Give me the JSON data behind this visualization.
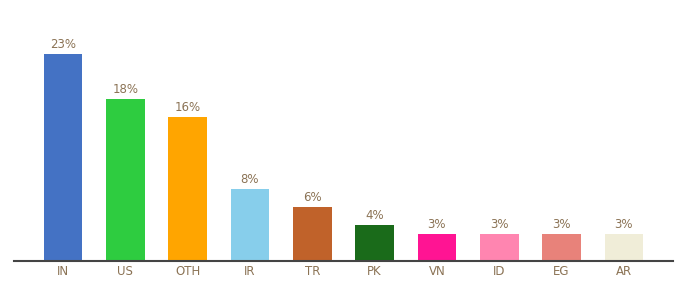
{
  "categories": [
    "IN",
    "US",
    "OTH",
    "IR",
    "TR",
    "PK",
    "VN",
    "ID",
    "EG",
    "AR"
  ],
  "values": [
    23,
    18,
    16,
    8,
    6,
    4,
    3,
    3,
    3,
    3
  ],
  "bar_colors": [
    "#4472C4",
    "#2ECC40",
    "#FFA500",
    "#87CEEB",
    "#C0622A",
    "#1A6B1A",
    "#FF1493",
    "#FF85B0",
    "#E8827A",
    "#F0EDD8"
  ],
  "labels": [
    "23%",
    "18%",
    "16%",
    "8%",
    "6%",
    "4%",
    "3%",
    "3%",
    "3%",
    "3%"
  ],
  "ylim": [
    0,
    27
  ],
  "background_color": "#ffffff",
  "label_color": "#8B7355",
  "label_fontsize": 8.5,
  "tick_color": "#8B7355",
  "tick_fontsize": 8.5,
  "bar_width": 0.62,
  "bottom_spine_color": "#444444",
  "figsize": [
    6.8,
    3.0
  ],
  "dpi": 100
}
